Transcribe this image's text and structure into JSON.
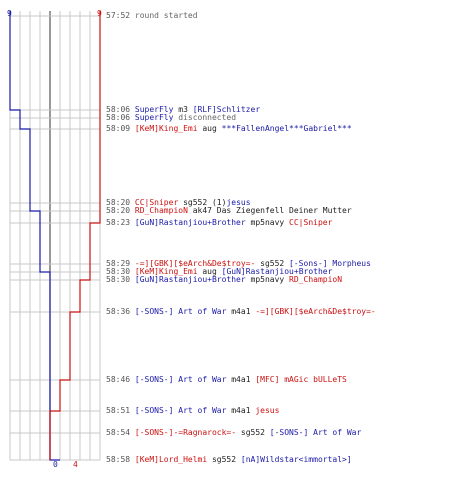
{
  "colors": {
    "blue": "#1a1aa8",
    "red": "#cc1111",
    "grid": "#c8c8c8",
    "axis": "#555555"
  },
  "score": {
    "blue_max": "9",
    "red_max": "9",
    "blue_final": "0",
    "red_final": "4"
  },
  "events": [
    {
      "time": "57:52",
      "parts": [
        {
          "text": "round started",
          "cls": "sys"
        }
      ]
    },
    {
      "time": "58:06",
      "parts": [
        {
          "text": "SuperFly",
          "cls": "blue"
        },
        {
          "text": " m3 ",
          "cls": "w"
        },
        {
          "text": "[RLF]Schlitzer",
          "cls": "blue"
        }
      ]
    },
    {
      "time": "58:06",
      "parts": [
        {
          "text": "SuperFly",
          "cls": "blue"
        },
        {
          "text": " disconnected",
          "cls": "sys"
        }
      ]
    },
    {
      "time": "58:09",
      "parts": [
        {
          "text": "[KeM]King_Emi",
          "cls": "red"
        },
        {
          "text": " aug ",
          "cls": "w"
        },
        {
          "text": "***FallenAngel***Gabriel***",
          "cls": "blue"
        }
      ]
    },
    {
      "time": "58:20",
      "parts": [
        {
          "text": "CC|Sniper",
          "cls": "red"
        },
        {
          "text": " sg552 (1)",
          "cls": "w"
        },
        {
          "text": "jesus",
          "cls": "blue"
        }
      ]
    },
    {
      "time": "58:20",
      "parts": [
        {
          "text": "RD_ChampioN",
          "cls": "red"
        },
        {
          "text": " ak47 Das Ziegenfell Deiner Mutter",
          "cls": "w"
        }
      ]
    },
    {
      "time": "58:23",
      "parts": [
        {
          "text": "[GuN]Rastanjiou+Brother",
          "cls": "blue"
        },
        {
          "text": " mp5navy ",
          "cls": "w"
        },
        {
          "text": "CC|Sniper",
          "cls": "red"
        }
      ]
    },
    {
      "time": "58:29",
      "parts": [
        {
          "text": "-=][GBK][$eArch&De$troy=-",
          "cls": "red"
        },
        {
          "text": " sg552 ",
          "cls": "w"
        },
        {
          "text": "[-Sons-] Morpheus",
          "cls": "blue"
        }
      ]
    },
    {
      "time": "58:30",
      "parts": [
        {
          "text": "[KeM]King_Emi",
          "cls": "red"
        },
        {
          "text": " aug ",
          "cls": "w"
        },
        {
          "text": "[GuN]Rastanjiou+Brother",
          "cls": "blue"
        }
      ]
    },
    {
      "time": "58:30",
      "parts": [
        {
          "text": "[GuN]Rastanjiou+Brother",
          "cls": "blue"
        },
        {
          "text": " mp5navy ",
          "cls": "w"
        },
        {
          "text": "RD_ChampioN",
          "cls": "red"
        }
      ]
    },
    {
      "time": "58:36",
      "parts": [
        {
          "text": "[-SONS-] Art of War",
          "cls": "blue"
        },
        {
          "text": " m4a1 ",
          "cls": "w"
        },
        {
          "text": "-=][GBK][$eArch&De$troy=-",
          "cls": "red"
        }
      ]
    },
    {
      "time": "58:46",
      "parts": [
        {
          "text": "[-SONS-] Art of War",
          "cls": "blue"
        },
        {
          "text": " m4a1 ",
          "cls": "w"
        },
        {
          "text": "[MFC] mAGic bULLeTS",
          "cls": "red"
        }
      ]
    },
    {
      "time": "58:51",
      "parts": [
        {
          "text": "[-SONS-] Art of War",
          "cls": "blue"
        },
        {
          "text": " m4a1 ",
          "cls": "w"
        },
        {
          "text": "jesus",
          "cls": "red"
        }
      ]
    },
    {
      "time": "58:54",
      "parts": [
        {
          "text": "[-SONS-]-=Ragnarock=-",
          "cls": "red"
        },
        {
          "text": " sg552 ",
          "cls": "w"
        },
        {
          "text": "[-SONS-] Art of War",
          "cls": "blue"
        }
      ]
    },
    {
      "time": "58:58",
      "parts": [
        {
          "text": "[KeM]Lord_Helmi",
          "cls": "red"
        },
        {
          "text": " sg552 ",
          "cls": "w"
        },
        {
          "text": "[nA]Wildstar<immortal>]",
          "cls": "blue"
        }
      ]
    }
  ]
}
